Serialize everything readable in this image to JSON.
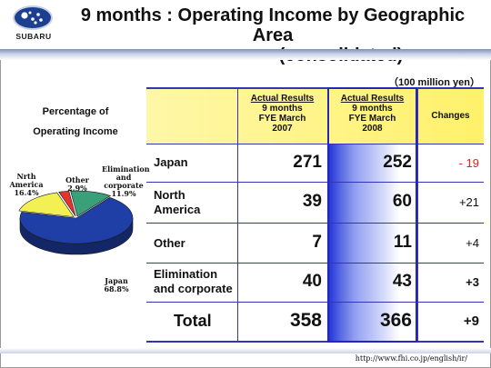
{
  "header": {
    "logo_text": "SUBARU",
    "title_line1": "9 months : Operating Income by Geographic Area",
    "title_line2": "(consolidated)"
  },
  "unit": "（100 million yen）",
  "table": {
    "col1": {
      "title": "Actual Results",
      "line2": "9 months",
      "line3": "FYE March",
      "line4": "2007"
    },
    "col2": {
      "title": "Actual Results",
      "line2": "9 months",
      "line3": "FYE March",
      "line4": "2008"
    },
    "col3": {
      "title": "Changes"
    },
    "rows": [
      {
        "label_line1": "Japan",
        "label_line2": "",
        "v2007": "271",
        "v2008": "252",
        "change": "- 19"
      },
      {
        "label_line1": "North",
        "label_line2": "America",
        "v2007": "39",
        "v2008": "60",
        "change": "+21"
      },
      {
        "label_line1": "Other",
        "label_line2": "",
        "v2007": "7",
        "v2008": "11",
        "change": "+4"
      },
      {
        "label_line1": "Elimination",
        "label_line2": "and corporate",
        "v2007": "40",
        "v2008": "43",
        "change": "+3"
      }
    ],
    "total": {
      "label": "Total",
      "v2007": "358",
      "v2008": "366",
      "change": "+9"
    }
  },
  "chart_data": {
    "type": "pie",
    "title": "Percentage of Operating Income",
    "slices": [
      {
        "label": "Japan",
        "value": 68.8,
        "display": "68.8%",
        "color": "#1f3fa6"
      },
      {
        "label": "Nrth America",
        "value": 16.4,
        "display": "16.4%",
        "color": "#f2f052"
      },
      {
        "label": "Other",
        "value": 2.9,
        "display": "2.9%",
        "color": "#e8322e"
      },
      {
        "label": "Elimination and corporate",
        "value": 11.9,
        "display": "11.9%",
        "color": "#3aa07a"
      }
    ]
  },
  "pie_labels": {
    "japan_name": "Japan",
    "japan_pct": "68.8%",
    "na_line1": "Nrth",
    "na_line2": "America",
    "na_pct": "16.4%",
    "other_name": "Other",
    "other_pct": "2.9%",
    "elim_line1": "Elimination",
    "elim_line2": "and",
    "elim_line3": "corporate",
    "elim_pct": "11.9%"
  },
  "footer": {
    "url": "http://www.fhi.co.jp/english/ir/"
  },
  "colors": {
    "accent_blue": "#2626b8",
    "negative": "#e0201c",
    "header_yellow": "#fff16a"
  }
}
